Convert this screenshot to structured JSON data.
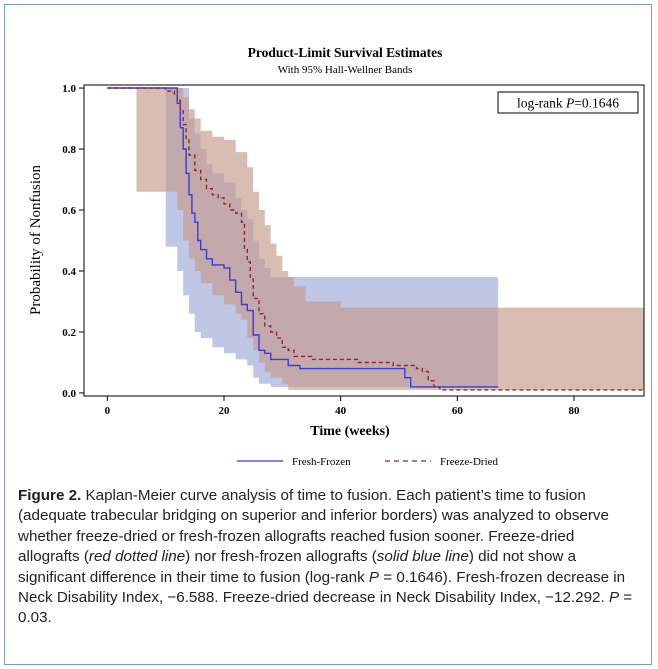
{
  "chart_data": {
    "type": "line",
    "title": "Product-Limit Survival Estimates",
    "subtitle": "With 95% Hall-Wellner Bands",
    "xlabel": "Time (weeks)",
    "ylabel": "Probability of Nonfusion",
    "xlim": [
      -4,
      92
    ],
    "ylim": [
      -0.01,
      1.01
    ],
    "x_ticks": [
      0,
      20,
      40,
      60,
      80
    ],
    "y_ticks": [
      0.0,
      0.2,
      0.4,
      0.6,
      0.8,
      1.0
    ],
    "x_tick_labels": [
      "0",
      "20",
      "40",
      "60",
      "80"
    ],
    "y_tick_labels": [
      "0.0",
      "0.2",
      "0.4",
      "0.6",
      "0.8",
      "1.0"
    ],
    "annotation": "log-rank P=0.1646",
    "legend_position": "bottom",
    "series": [
      {
        "name": "Fresh-Frozen",
        "line_style": "solid",
        "color": "#3b3bd6",
        "band_color": "#7f8fcf",
        "steps": [
          [
            0,
            1.0
          ],
          [
            12,
            0.95
          ],
          [
            12.5,
            0.87
          ],
          [
            13,
            0.8
          ],
          [
            13.5,
            0.72
          ],
          [
            14,
            0.65
          ],
          [
            14.5,
            0.59
          ],
          [
            15,
            0.56
          ],
          [
            15.5,
            0.5
          ],
          [
            16,
            0.47
          ],
          [
            17,
            0.44
          ],
          [
            18,
            0.42
          ],
          [
            20,
            0.41
          ],
          [
            21,
            0.37
          ],
          [
            22,
            0.33
          ],
          [
            23,
            0.29
          ],
          [
            24,
            0.27
          ],
          [
            25,
            0.19
          ],
          [
            26,
            0.14
          ],
          [
            27,
            0.13
          ],
          [
            28,
            0.11
          ],
          [
            31,
            0.09
          ],
          [
            33,
            0.08
          ],
          [
            51,
            0.05
          ],
          [
            52,
            0.02
          ],
          [
            67,
            0.02
          ]
        ],
        "band_upper": [
          [
            10,
            1.0
          ],
          [
            14,
            0.9
          ],
          [
            15,
            0.85
          ],
          [
            16,
            0.8
          ],
          [
            17,
            0.75
          ],
          [
            18,
            0.72
          ],
          [
            20,
            0.69
          ],
          [
            22,
            0.64
          ],
          [
            23,
            0.6
          ],
          [
            24,
            0.57
          ],
          [
            25,
            0.5
          ],
          [
            26,
            0.44
          ],
          [
            27,
            0.41
          ],
          [
            28,
            0.38
          ],
          [
            67,
            0.38
          ]
        ],
        "band_lower": [
          [
            10,
            0.48
          ],
          [
            12,
            0.4
          ],
          [
            13,
            0.32
          ],
          [
            14,
            0.26
          ],
          [
            15,
            0.2
          ],
          [
            16,
            0.18
          ],
          [
            18,
            0.15
          ],
          [
            20,
            0.13
          ],
          [
            22,
            0.11
          ],
          [
            24,
            0.09
          ],
          [
            25,
            0.05
          ],
          [
            26,
            0.03
          ],
          [
            28,
            0.02
          ],
          [
            67,
            0.0
          ]
        ]
      },
      {
        "name": "Freeze-Dried",
        "line_style": "dashed",
        "color": "#8b2b2b",
        "band_color": "#c49a8a",
        "steps": [
          [
            0,
            1.0
          ],
          [
            10,
            0.99
          ],
          [
            11.5,
            0.98
          ],
          [
            12,
            0.96
          ],
          [
            12.5,
            0.93
          ],
          [
            13,
            0.88
          ],
          [
            13.5,
            0.83
          ],
          [
            14,
            0.78
          ],
          [
            15,
            0.73
          ],
          [
            16,
            0.7
          ],
          [
            17,
            0.67
          ],
          [
            18,
            0.65
          ],
          [
            19,
            0.64
          ],
          [
            20,
            0.62
          ],
          [
            21,
            0.6
          ],
          [
            22,
            0.59
          ],
          [
            23,
            0.56
          ],
          [
            23.5,
            0.47
          ],
          [
            24,
            0.43
          ],
          [
            24.5,
            0.38
          ],
          [
            25,
            0.31
          ],
          [
            26,
            0.26
          ],
          [
            27,
            0.22
          ],
          [
            28,
            0.2
          ],
          [
            29,
            0.18
          ],
          [
            30,
            0.15
          ],
          [
            31,
            0.14
          ],
          [
            32,
            0.12
          ],
          [
            35,
            0.11
          ],
          [
            43,
            0.1
          ],
          [
            49,
            0.09
          ],
          [
            53,
            0.08
          ],
          [
            54,
            0.07
          ],
          [
            55,
            0.04
          ],
          [
            56,
            0.02
          ],
          [
            57,
            0.01
          ],
          [
            92,
            0.01
          ]
        ],
        "band_upper": [
          [
            5,
            1.0
          ],
          [
            13,
            0.97
          ],
          [
            14,
            0.93
          ],
          [
            15,
            0.9
          ],
          [
            16,
            0.86
          ],
          [
            18,
            0.84
          ],
          [
            20,
            0.83
          ],
          [
            22,
            0.79
          ],
          [
            24,
            0.74
          ],
          [
            25,
            0.66
          ],
          [
            26,
            0.6
          ],
          [
            27,
            0.55
          ],
          [
            28,
            0.49
          ],
          [
            29,
            0.45
          ],
          [
            30,
            0.4
          ],
          [
            31,
            0.38
          ],
          [
            32,
            0.35
          ],
          [
            34,
            0.3
          ],
          [
            40,
            0.28
          ],
          [
            92,
            0.27
          ]
        ],
        "band_lower": [
          [
            5,
            0.66
          ],
          [
            11,
            0.66
          ],
          [
            12,
            0.6
          ],
          [
            13,
            0.5
          ],
          [
            14,
            0.44
          ],
          [
            15,
            0.4
          ],
          [
            16,
            0.36
          ],
          [
            18,
            0.32
          ],
          [
            20,
            0.29
          ],
          [
            22,
            0.26
          ],
          [
            23,
            0.24
          ],
          [
            24,
            0.18
          ],
          [
            25,
            0.14
          ],
          [
            26,
            0.1
          ],
          [
            27,
            0.07
          ],
          [
            28,
            0.05
          ],
          [
            30,
            0.03
          ],
          [
            31,
            0.01
          ],
          [
            92,
            0.0
          ]
        ]
      }
    ]
  },
  "legend": {
    "fresh_frozen": "Fresh-Frozen",
    "freeze_dried": "Freeze-Dried"
  },
  "annotation": {
    "prefix": "log-rank ",
    "p_symbol": "P",
    "value": "=0.1646"
  },
  "caption": {
    "label": "Figure 2.",
    "part1": "  Kaplan-Meier curve analysis of time to fusion. Each patient’s time to fusion (adequate trabecular bridging on superior and inferior borders) was analyzed to observe whether freeze-dried or fresh-frozen allografts reached fusion sooner. Freeze-dried allografts (",
    "italic1": "red dotted line",
    "part2": ") nor fresh-frozen allografts (",
    "italic2": "solid blue line",
    "part3": ") did not show a significant difference in their time to fusion (log-rank ",
    "p1": "P",
    "part4": " = 0.1646). Fresh-frozen decrease in Neck Disability Index, −6.588. Freeze-dried decrease in Neck Disability Index, −12.292. ",
    "p2": "P",
    "part5": " = 0.03."
  }
}
